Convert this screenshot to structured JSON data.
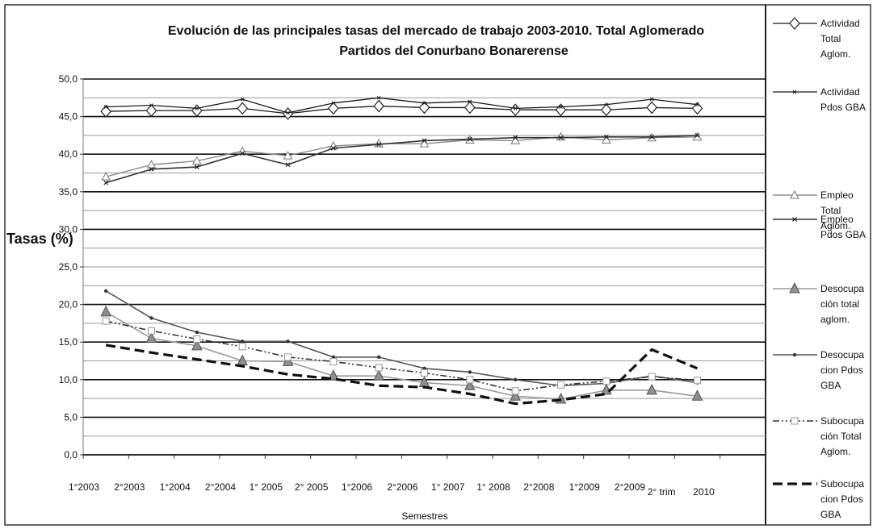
{
  "chart_data": {
    "type": "line",
    "title": "Evolución de las principales tasas del mercado de trabajo 2003-2010. Total Aglomerado",
    "subtitle": "Partidos del Conurbano Bonarerense",
    "ylabel": "Tasas (%)",
    "xlabel": "Semestres",
    "ylim": [
      0,
      50
    ],
    "yticks": [
      "0,0",
      "5,0",
      "10,0",
      "15,0",
      "20,0",
      "25,0",
      "30,0",
      "35,0",
      "40,0",
      "45,0",
      "50,0"
    ],
    "categories": [
      "1°2003",
      "2°2003",
      "1°2004",
      "2°2004",
      "1° 2005",
      "2° 2005",
      "1°2006",
      "2°2006",
      "1° 2007",
      "1° 2008",
      "2°2008",
      "1°2009",
      "2°2009",
      "2° trim2010",
      ""
    ],
    "x_tick_labels": [
      "1°2003",
      "2°2003",
      "1°2004",
      "2°2004",
      "1° 2005",
      "2° 2005",
      "1°2006",
      "2°2006",
      "1° 2007",
      "1° 2008",
      "2°2008",
      "1°2009",
      "2°2009",
      "2° trim",
      "2010"
    ],
    "grid": true,
    "legend_position": "right",
    "series": [
      {
        "name": "Actividad Total Aglom.",
        "style": "diamond",
        "values": [
          45.7,
          45.8,
          45.8,
          46.1,
          45.4,
          46.1,
          46.4,
          46.2,
          46.2,
          45.9,
          45.9,
          45.9,
          46.2,
          46.1,
          null
        ]
      },
      {
        "name": "Actividad Pdos GBA",
        "style": "thin-x",
        "values": [
          46.3,
          46.5,
          46.1,
          47.3,
          45.5,
          46.8,
          47.5,
          46.8,
          47.0,
          46.1,
          46.3,
          46.6,
          47.3,
          46.6,
          null
        ]
      },
      {
        "name": "Empleo Total Aglom.",
        "style": "hollow-triangle",
        "values": [
          37.0,
          38.6,
          39.1,
          40.4,
          39.8,
          41.1,
          41.4,
          41.4,
          41.9,
          41.8,
          42.3,
          41.9,
          42.2,
          42.3,
          null
        ]
      },
      {
        "name": "Empleo Pdos GBA",
        "style": "small-x",
        "values": [
          36.2,
          38.0,
          38.3,
          40.1,
          38.6,
          40.8,
          41.3,
          41.8,
          42.0,
          42.2,
          42.2,
          42.3,
          42.3,
          42.5,
          null
        ]
      },
      {
        "name": "Desocupación total aglom.",
        "style": "filled-triangle",
        "values": [
          19.0,
          15.5,
          14.5,
          12.5,
          12.4,
          10.5,
          10.5,
          9.6,
          9.2,
          7.8,
          7.4,
          8.6,
          8.6,
          7.8,
          null
        ]
      },
      {
        "name": "Desocupacion Pdos GBA",
        "style": "dot",
        "values": [
          21.8,
          18.2,
          16.3,
          15.1,
          15.1,
          13.0,
          13.0,
          11.5,
          11.0,
          10.0,
          9.2,
          9.5,
          10.5,
          9.6,
          null
        ]
      },
      {
        "name": "Subocupación Total Aglom.",
        "style": "dashdot-square",
        "values": [
          17.8,
          16.5,
          15.4,
          14.4,
          13.0,
          12.4,
          11.6,
          10.9,
          10.0,
          8.5,
          9.3,
          9.8,
          10.4,
          9.9,
          null
        ]
      },
      {
        "name": "Subocupacion Pdos GBA",
        "style": "thick-dash",
        "values": [
          14.6,
          13.6,
          12.7,
          11.8,
          10.7,
          10.1,
          9.2,
          9.0,
          8.1,
          6.8,
          7.3,
          8.1,
          14.0,
          11.5,
          null
        ]
      }
    ]
  },
  "legend": [
    [
      "Actividad",
      "Total",
      "Aglom."
    ],
    [
      "Actividad",
      "Pdos GBA"
    ],
    [
      "Empleo",
      "Total",
      "Aglom."
    ],
    [
      "Empleo",
      "Pdos GBA"
    ],
    [
      "Desocupa",
      "ción total",
      "aglom."
    ],
    [
      "Desocupa",
      "cion Pdos",
      "GBA"
    ],
    [
      "Subocupa",
      "ción Total",
      "Aglom."
    ],
    [
      "Subocupa",
      "cion Pdos",
      "GBA"
    ]
  ]
}
